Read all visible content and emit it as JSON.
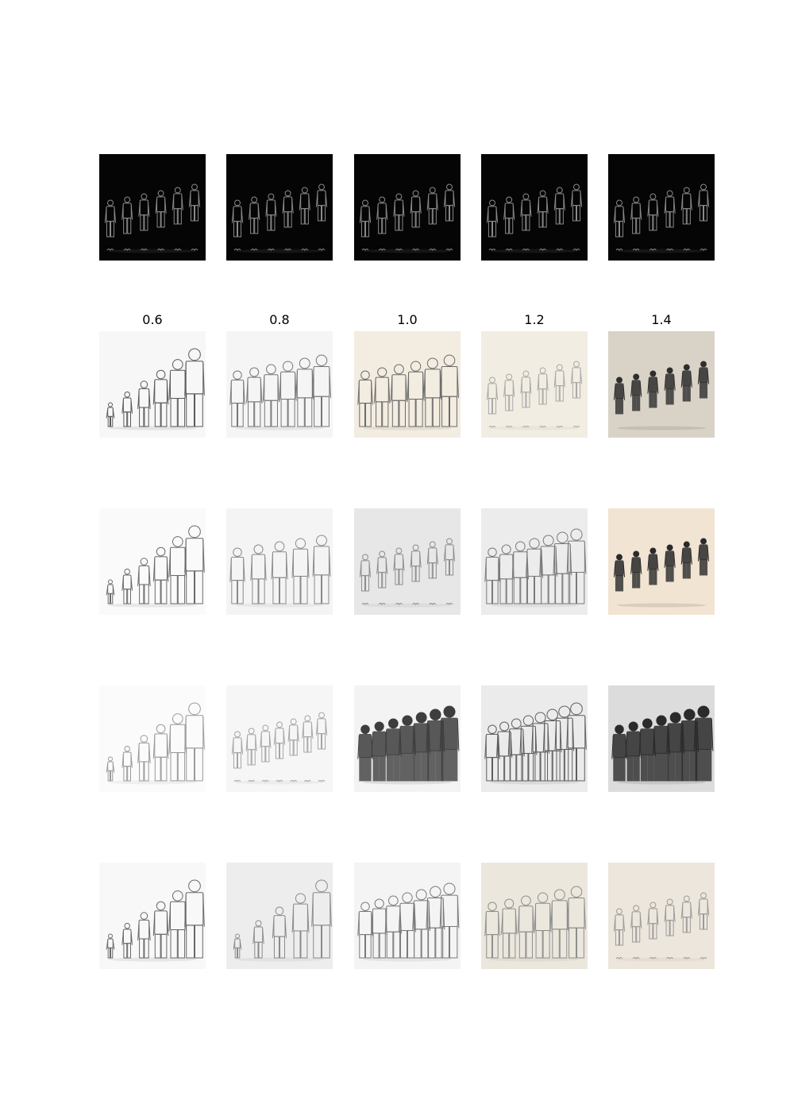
{
  "column_labels": [
    "0.6",
    "0.8",
    "1.0",
    "1.2",
    "1.4"
  ],
  "condition_row": {
    "description_icon": "edge-map-people-lineup",
    "background": "#050505",
    "stroke": "#8a8a8a"
  },
  "grid": [
    [
      {
        "bg": "#f7f7f7",
        "ink": "#5a5a5a",
        "figures": 6,
        "style": "growing"
      },
      {
        "bg": "#f5f5f5",
        "ink": "#777777",
        "figures": 6,
        "style": "even"
      },
      {
        "bg": "#f3ece0",
        "ink": "#6b6b6b",
        "figures": 6,
        "style": "even"
      },
      {
        "bg": "#f2ede2",
        "ink": "#a9a9a9",
        "figures": 6,
        "style": "staircase"
      },
      {
        "bg": "#d9d3c7",
        "ink": "#2e2e2e",
        "figures": 6,
        "style": "staircase"
      }
    ],
    [
      {
        "bg": "#fafafa",
        "ink": "#6a6a6a",
        "figures": 6,
        "style": "growing"
      },
      {
        "bg": "#f4f4f4",
        "ink": "#8a8a8a",
        "figures": 5,
        "style": "even"
      },
      {
        "bg": "#e7e7e7",
        "ink": "#8d8d8d",
        "figures": 6,
        "style": "staircase"
      },
      {
        "bg": "#ececec",
        "ink": "#7a7a7a",
        "figures": 7,
        "style": "even"
      },
      {
        "bg": "#f1e4d3",
        "ink": "#2a2a2a",
        "figures": 6,
        "style": "staircase"
      }
    ],
    [
      {
        "bg": "#fbfbfb",
        "ink": "#9a9a9a",
        "figures": 6,
        "style": "growing"
      },
      {
        "bg": "#f6f6f6",
        "ink": "#a5a5a5",
        "figures": 7,
        "style": "staircase"
      },
      {
        "bg": "#f3f3f3",
        "ink": "#3e3e3e",
        "figures": 7,
        "style": "even"
      },
      {
        "bg": "#ebebeb",
        "ink": "#5e5e5e",
        "figures": 8,
        "style": "even"
      },
      {
        "bg": "#dcdcdc",
        "ink": "#2b2b2b",
        "figures": 7,
        "style": "even"
      }
    ],
    [
      {
        "bg": "#f8f8f8",
        "ink": "#686868",
        "figures": 6,
        "style": "growing"
      },
      {
        "bg": "#ededed",
        "ink": "#8a8a8a",
        "figures": 5,
        "style": "growing"
      },
      {
        "bg": "#f4f4f4",
        "ink": "#7a7a7a",
        "figures": 7,
        "style": "even"
      },
      {
        "bg": "#ebe7dd",
        "ink": "#8e8e8e",
        "figures": 6,
        "style": "even"
      },
      {
        "bg": "#ede6dc",
        "ink": "#9a9a9a",
        "figures": 6,
        "style": "staircase"
      }
    ]
  ]
}
